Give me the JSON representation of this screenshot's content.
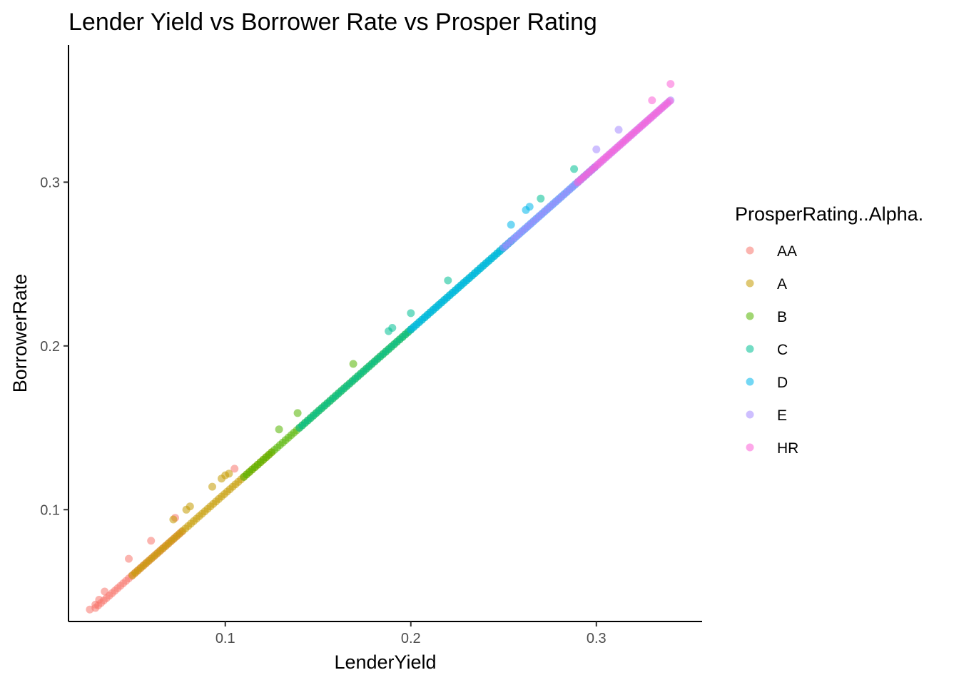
{
  "chart_data": {
    "type": "scatter",
    "title": "Lender Yield vs Borrower Rate vs Prosper Rating",
    "xlabel": "LenderYield",
    "ylabel": "BorrowerRate",
    "xlim": [
      0.0155,
      0.357
    ],
    "ylim": [
      0.0317,
      0.3838
    ],
    "x_ticks": [
      0.1,
      0.2,
      0.3
    ],
    "x_tick_labels": [
      "0.1",
      "0.2",
      "0.3"
    ],
    "y_ticks": [
      0.1,
      0.2,
      0.3
    ],
    "y_tick_labels": [
      "0.1",
      "0.2",
      "0.3"
    ],
    "grid": false,
    "legend": {
      "title": "ProsperRating..Alpha.",
      "position": "right"
    },
    "point_alpha": 0.55,
    "series": [
      {
        "name": "AA",
        "color": "#F8766D",
        "line": {
          "x_range": [
            0.03,
            0.077
          ],
          "offset": 0.01
        },
        "points": [
          [
            0.027,
            0.039
          ],
          [
            0.03,
            0.042
          ],
          [
            0.032,
            0.045
          ],
          [
            0.035,
            0.05
          ],
          [
            0.048,
            0.07
          ],
          [
            0.06,
            0.081
          ],
          [
            0.073,
            0.095
          ],
          [
            0.105,
            0.125
          ]
        ]
      },
      {
        "name": "A",
        "color": "#C49A00",
        "line": {
          "x_range": [
            0.05,
            0.125
          ],
          "offset": 0.01
        },
        "points": [
          [
            0.072,
            0.094
          ],
          [
            0.079,
            0.1
          ],
          [
            0.081,
            0.102
          ],
          [
            0.093,
            0.114
          ],
          [
            0.098,
            0.119
          ],
          [
            0.1,
            0.121
          ],
          [
            0.102,
            0.122
          ]
        ]
      },
      {
        "name": "B",
        "color": "#53B400",
        "line": {
          "x_range": [
            0.11,
            0.2
          ],
          "offset": 0.01
        },
        "points": [
          [
            0.129,
            0.149
          ],
          [
            0.139,
            0.159
          ],
          [
            0.169,
            0.189
          ]
        ]
      },
      {
        "name": "C",
        "color": "#00C094",
        "line": {
          "x_range": [
            0.14,
            0.255
          ],
          "offset": 0.01
        },
        "points": [
          [
            0.188,
            0.209
          ],
          [
            0.19,
            0.211
          ],
          [
            0.2,
            0.22
          ],
          [
            0.22,
            0.24
          ],
          [
            0.27,
            0.29
          ],
          [
            0.288,
            0.308
          ]
        ]
      },
      {
        "name": "D",
        "color": "#00B6EB",
        "line": {
          "x_range": [
            0.2,
            0.3
          ],
          "offset": 0.01
        },
        "points": [
          [
            0.254,
            0.274
          ],
          [
            0.262,
            0.283
          ],
          [
            0.264,
            0.285
          ]
        ]
      },
      {
        "name": "E",
        "color": "#A58AFF",
        "line": {
          "x_range": [
            0.25,
            0.34
          ],
          "offset": 0.01
        },
        "points": [
          [
            0.3,
            0.32
          ],
          [
            0.312,
            0.332
          ]
        ]
      },
      {
        "name": "HR",
        "color": "#FB61D7",
        "line": {
          "x_range": [
            0.29,
            0.34
          ],
          "offset": 0.01
        },
        "points": [
          [
            0.33,
            0.35
          ],
          [
            0.34,
            0.36
          ]
        ]
      }
    ]
  }
}
